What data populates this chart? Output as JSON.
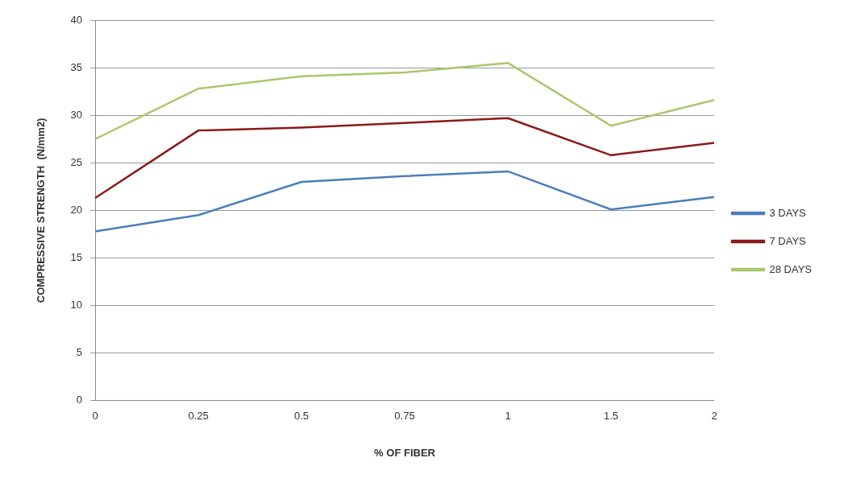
{
  "chart_data": {
    "type": "line",
    "xlabel": "% OF FIBER",
    "ylabel": "COMPRESSIVE STRENGTH  (N/mm2)",
    "categories": [
      "0",
      "0.25",
      "0.5",
      "0.75",
      "1",
      "1.5",
      "2"
    ],
    "series": [
      {
        "name": "3 DAYS",
        "color": "#4a7ebb",
        "values": [
          17.8,
          19.5,
          23,
          23.6,
          24.1,
          20.1,
          21.4
        ]
      },
      {
        "name": "7 DAYS",
        "color": "#8b1a1a",
        "values": [
          21.3,
          28.4,
          28.7,
          29.2,
          29.7,
          25.8,
          27.1
        ]
      },
      {
        "name": "28 DAYS",
        "color": "#a8c86a",
        "values": [
          27.5,
          32.8,
          34.1,
          34.5,
          35.5,
          28.9,
          31.6
        ]
      }
    ],
    "ylim": [
      0,
      40
    ],
    "yticks": [
      0,
      5,
      10,
      15,
      20,
      25,
      30,
      35,
      40
    ],
    "grid": "y",
    "legend": "right",
    "marker": "none",
    "line_style": "solid"
  }
}
